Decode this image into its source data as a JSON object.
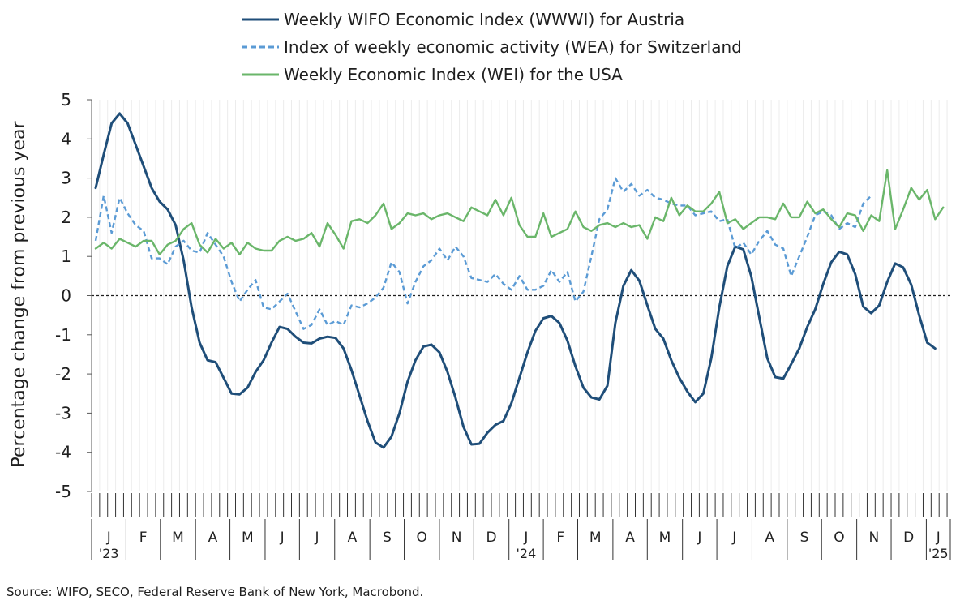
{
  "chart_data": {
    "type": "line",
    "title": "",
    "ylabel": "Percentage change from previous year",
    "ylim": [
      -5,
      5
    ],
    "yticks": [
      5,
      4,
      3,
      2,
      1,
      0,
      -1,
      -2,
      -3,
      -4,
      -5
    ],
    "ytick_labels": [
      "5",
      "4",
      "3",
      "2",
      "1",
      "0",
      "-1",
      "-2",
      "-3",
      "-4",
      "-5"
    ],
    "x_axis": {
      "unit": "week",
      "start": "Jan 2023",
      "months": [
        "J",
        "F",
        "M",
        "A",
        "M",
        "J",
        "J",
        "A",
        "S",
        "O",
        "N",
        "D",
        "J",
        "F",
        "M",
        "A",
        "M",
        "J",
        "J",
        "A",
        "S",
        "O",
        "N",
        "D",
        "J"
      ],
      "month_weeks": [
        4.3,
        4.3,
        4.4,
        4.3,
        4.4,
        4.3,
        4.4,
        4.4,
        4.3,
        4.4,
        4.3,
        4.4,
        4.3,
        4.3,
        4.4,
        4.3,
        4.4,
        4.3,
        4.4,
        4.4,
        4.3,
        4.4,
        4.3,
        4.4,
        3.0
      ],
      "year_labels": [
        {
          "month_index": 0,
          "label": "'23"
        },
        {
          "month_index": 12,
          "label": "'24"
        },
        {
          "month_index": 24,
          "label": "'25"
        }
      ]
    },
    "legend_position": "top",
    "grid": "vertical",
    "series": [
      {
        "name": "Weekly WIFO Economic Index (WWWI) for Austria",
        "color": "#1f4e79",
        "dash": "solid",
        "values": [
          2.75,
          3.6,
          4.4,
          4.65,
          4.4,
          3.85,
          3.3,
          2.75,
          2.4,
          2.2,
          1.8,
          0.9,
          -0.3,
          -1.2,
          -1.65,
          -1.7,
          -2.1,
          -2.5,
          -2.52,
          -2.35,
          -1.95,
          -1.65,
          -1.2,
          -0.8,
          -0.85,
          -1.05,
          -1.2,
          -1.22,
          -1.1,
          -1.05,
          -1.08,
          -1.35,
          -1.9,
          -2.55,
          -3.2,
          -3.75,
          -3.88,
          -3.6,
          -3.0,
          -2.2,
          -1.65,
          -1.3,
          -1.25,
          -1.45,
          -1.95,
          -2.6,
          -3.35,
          -3.8,
          -3.78,
          -3.5,
          -3.3,
          -3.2,
          -2.75,
          -2.1,
          -1.45,
          -0.9,
          -0.58,
          -0.52,
          -0.7,
          -1.15,
          -1.8,
          -2.35,
          -2.6,
          -2.65,
          -2.3,
          -0.7,
          0.25,
          0.65,
          0.38,
          -0.25,
          -0.85,
          -1.1,
          -1.65,
          -2.1,
          -2.45,
          -2.72,
          -2.5,
          -1.6,
          -0.3,
          0.75,
          1.25,
          1.18,
          0.5,
          -0.55,
          -1.6,
          -2.08,
          -2.12,
          -1.75,
          -1.35,
          -0.8,
          -0.35,
          0.3,
          0.85,
          1.12,
          1.05,
          0.55,
          -0.28,
          -0.45,
          -0.25,
          0.35,
          0.82,
          0.72,
          0.28,
          -0.5,
          -1.2,
          -1.35
        ]
      },
      {
        "name": "Index of weekly economic activity (WEA) for Switzerland",
        "color": "#5b9bd5",
        "dash": "dashed",
        "values": [
          1.4,
          2.55,
          1.6,
          2.5,
          2.1,
          1.8,
          1.65,
          0.95,
          0.95,
          0.8,
          1.25,
          1.4,
          1.15,
          1.1,
          1.6,
          1.3,
          1.0,
          0.35,
          -0.15,
          0.15,
          0.4,
          -0.3,
          -0.35,
          -0.15,
          0.05,
          -0.4,
          -0.85,
          -0.75,
          -0.35,
          -0.75,
          -0.65,
          -0.75,
          -0.25,
          -0.3,
          -0.2,
          -0.05,
          0.2,
          0.85,
          0.6,
          -0.2,
          0.35,
          0.75,
          0.9,
          1.2,
          0.9,
          1.25,
          1.0,
          0.45,
          0.4,
          0.35,
          0.55,
          0.3,
          0.15,
          0.5,
          0.15,
          0.15,
          0.25,
          0.65,
          0.35,
          0.6,
          -0.15,
          0.1,
          1.0,
          1.95,
          2.2,
          3.0,
          2.65,
          2.85,
          2.55,
          2.7,
          2.5,
          2.45,
          2.35,
          2.3,
          2.3,
          2.05,
          2.1,
          2.15,
          1.9,
          1.95,
          1.2,
          1.35,
          1.05,
          1.4,
          1.65,
          1.3,
          1.2,
          0.5,
          1.0,
          1.5,
          2.05,
          2.15,
          2.05,
          1.7,
          1.85,
          1.75,
          2.35,
          2.55
        ]
      },
      {
        "name": "Weekly Economic Index (WEI) for the USA",
        "color": "#6ab66a",
        "dash": "solid",
        "values": [
          1.2,
          1.35,
          1.2,
          1.45,
          1.35,
          1.25,
          1.4,
          1.4,
          1.05,
          1.3,
          1.4,
          1.7,
          1.85,
          1.3,
          1.1,
          1.45,
          1.2,
          1.35,
          1.05,
          1.35,
          1.2,
          1.15,
          1.15,
          1.4,
          1.5,
          1.4,
          1.45,
          1.6,
          1.25,
          1.85,
          1.55,
          1.2,
          1.9,
          1.95,
          1.85,
          2.05,
          2.35,
          1.7,
          1.85,
          2.1,
          2.05,
          2.1,
          1.95,
          2.05,
          2.1,
          2.0,
          1.9,
          2.25,
          2.15,
          2.05,
          2.45,
          2.05,
          2.5,
          1.8,
          1.5,
          1.5,
          2.1,
          1.5,
          1.6,
          1.7,
          2.15,
          1.75,
          1.65,
          1.8,
          1.85,
          1.75,
          1.85,
          1.75,
          1.8,
          1.45,
          2.0,
          1.9,
          2.5,
          2.05,
          2.3,
          2.15,
          2.15,
          2.35,
          2.65,
          1.85,
          1.95,
          1.7,
          1.85,
          2.0,
          2.0,
          1.95,
          2.35,
          2.0,
          2.0,
          2.4,
          2.1,
          2.2,
          1.95,
          1.75,
          2.1,
          2.05,
          1.65,
          2.05,
          1.9,
          3.2,
          1.7,
          2.2,
          2.75,
          2.45,
          2.7,
          1.95,
          2.25
        ]
      }
    ]
  },
  "legend": [
    {
      "label": "Weekly WIFO Economic Index (WWWI) for Austria",
      "color": "#1f4e79",
      "dash": "solid"
    },
    {
      "label": "Index of weekly economic activity (WEA) for Switzerland",
      "color": "#5b9bd5",
      "dash": "dashed"
    },
    {
      "label": "Weekly Economic Index (WEI) for the USA",
      "color": "#6ab66a",
      "dash": "solid"
    }
  ],
  "source": "Source: WIFO, SECO, Federal Reserve Bank of New York, Macrobond."
}
